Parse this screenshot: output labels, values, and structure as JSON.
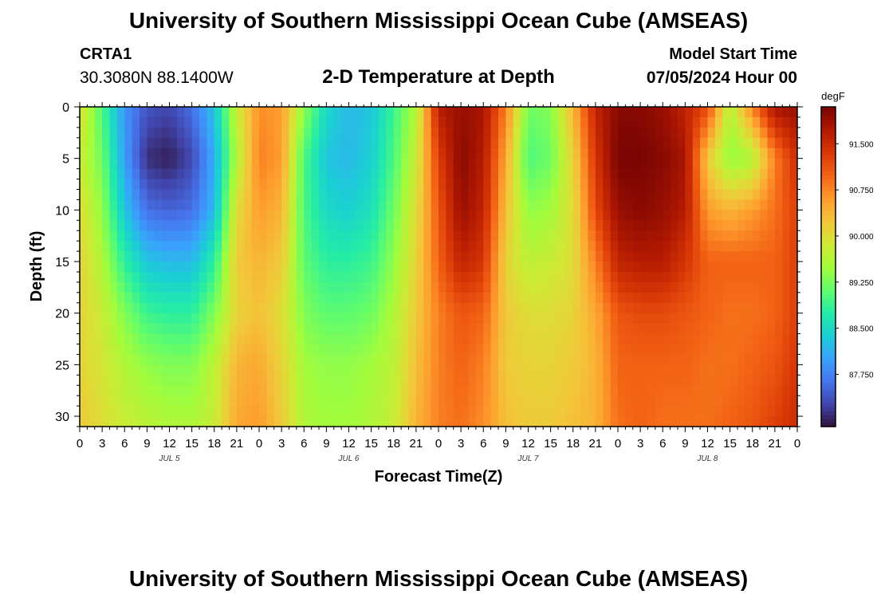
{
  "header": {
    "title": "University of Southern Mississippi Ocean Cube (AMSEAS)",
    "station": "CRTA1",
    "coordinates": "30.3080N  88.1400W",
    "subtitle": "2-D Temperature at Depth",
    "model_start_label": "Model Start Time",
    "model_start_value": "07/05/2024 Hour 00"
  },
  "footer": {
    "title": "University of Southern Mississippi Ocean Cube (AMSEAS)"
  },
  "colors": {
    "background": "#ffffff",
    "colormap": [
      "#30123b",
      "#4145ab",
      "#4675ed",
      "#39a2fc",
      "#1bcfd4",
      "#24eca6",
      "#61fc6c",
      "#a4fc3b",
      "#d1e834",
      "#f3c63a",
      "#fe9b2d",
      "#f36315",
      "#d93806",
      "#b11901",
      "#7a0403"
    ]
  },
  "chart_data": {
    "type": "heatmap",
    "title": "2-D Temperature at Depth",
    "xlabel": "Forecast Time(Z)",
    "ylabel": "Depth (ft)",
    "x_range_hours": [
      0,
      96
    ],
    "ylim": [
      0,
      31
    ],
    "y_inverted": true,
    "x_tick_labels": [
      "0",
      "3",
      "6",
      "9",
      "12",
      "15",
      "18",
      "21",
      "0",
      "3",
      "6",
      "9",
      "12",
      "15",
      "18",
      "21",
      "0",
      "3",
      "6",
      "9",
      "12",
      "15",
      "18",
      "21",
      "0",
      "3",
      "6",
      "9",
      "12",
      "15",
      "18",
      "21",
      "0"
    ],
    "day_labels": [
      {
        "label": "JUL 5",
        "hour": 12
      },
      {
        "label": "JUL 6",
        "hour": 36
      },
      {
        "label": "JUL 7",
        "hour": 60
      },
      {
        "label": "JUL 8",
        "hour": 84
      }
    ],
    "y_ticks": [
      0,
      5,
      10,
      15,
      20,
      25,
      30
    ],
    "colorbar": {
      "unit": "degF",
      "min": 86.9,
      "max": 92.1,
      "tick_values": [
        87.75,
        88.5,
        89.25,
        90.0,
        90.75,
        91.5
      ],
      "tick_labels": [
        "87.750",
        "88.500",
        "89.250",
        "90.000",
        "90.750",
        "91.500"
      ]
    },
    "depth_levels_ft": [
      0,
      5,
      10,
      15,
      20,
      25,
      31
    ],
    "time_hours": [
      0,
      3,
      6,
      9,
      12,
      15,
      18,
      21,
      24,
      27,
      30,
      33,
      36,
      39,
      42,
      45,
      48,
      51,
      54,
      57,
      60,
      63,
      66,
      69,
      72,
      75,
      78,
      81,
      84,
      87,
      90,
      93,
      96
    ],
    "temperature_degF": [
      [
        90.0,
        89.0,
        87.9,
        87.4,
        87.3,
        87.6,
        88.3,
        89.8,
        90.7,
        90.6,
        89.4,
        88.5,
        88.2,
        88.3,
        88.9,
        89.6,
        91.7,
        91.9,
        91.8,
        90.8,
        89.2,
        89.3,
        90.4,
        91.6,
        92.0,
        92.0,
        91.9,
        91.6,
        91.2,
        89.6,
        90.8,
        91.8,
        91.9
      ],
      [
        89.8,
        89.2,
        88.0,
        87.1,
        87.0,
        87.3,
        88.1,
        89.6,
        90.8,
        90.6,
        89.0,
        88.3,
        88.2,
        88.4,
        89.0,
        89.8,
        91.3,
        92.0,
        91.7,
        90.5,
        89.0,
        89.2,
        90.1,
        91.4,
        92.1,
        92.1,
        92.0,
        91.8,
        90.2,
        89.4,
        89.6,
        90.8,
        91.5
      ],
      [
        90.0,
        89.4,
        88.3,
        87.6,
        87.5,
        87.6,
        88.2,
        90.0,
        90.6,
        90.4,
        89.0,
        88.5,
        88.4,
        88.6,
        89.2,
        90.0,
        91.1,
        91.9,
        91.6,
        90.3,
        89.4,
        89.5,
        90.0,
        91.2,
        91.9,
        92.0,
        91.9,
        91.7,
        90.6,
        90.4,
        90.6,
        90.9,
        91.3
      ],
      [
        90.1,
        89.6,
        88.8,
        88.3,
        88.2,
        88.2,
        88.8,
        90.2,
        90.4,
        90.2,
        89.1,
        88.8,
        88.8,
        88.9,
        89.4,
        90.1,
        91.0,
        91.6,
        91.4,
        90.1,
        89.7,
        89.8,
        90.0,
        90.8,
        91.6,
        91.7,
        91.7,
        91.4,
        91.0,
        91.0,
        91.0,
        91.0,
        91.3
      ],
      [
        90.1,
        89.8,
        89.3,
        88.9,
        88.8,
        88.8,
        89.3,
        90.1,
        90.3,
        90.0,
        89.3,
        89.1,
        89.1,
        89.2,
        89.6,
        90.2,
        90.8,
        91.1,
        91.0,
        90.2,
        90.0,
        90.0,
        90.1,
        90.5,
        91.1,
        91.2,
        91.2,
        91.1,
        91.0,
        90.9,
        90.9,
        91.0,
        91.3
      ],
      [
        90.1,
        89.9,
        89.6,
        89.4,
        89.3,
        89.3,
        89.7,
        90.4,
        90.5,
        90.1,
        89.5,
        89.4,
        89.4,
        89.5,
        89.7,
        90.3,
        90.8,
        91.0,
        90.8,
        90.2,
        90.1,
        90.1,
        90.2,
        90.4,
        91.0,
        91.0,
        91.0,
        91.0,
        90.9,
        90.9,
        91.0,
        91.1,
        91.4
      ],
      [
        90.2,
        90.0,
        89.8,
        89.7,
        89.6,
        89.6,
        89.8,
        90.5,
        90.6,
        90.2,
        89.6,
        89.5,
        89.5,
        89.6,
        89.8,
        90.4,
        90.8,
        90.9,
        90.7,
        90.3,
        90.2,
        90.2,
        90.3,
        90.4,
        90.9,
        91.0,
        90.9,
        90.9,
        90.9,
        91.0,
        91.1,
        91.3,
        91.5
      ]
    ]
  }
}
